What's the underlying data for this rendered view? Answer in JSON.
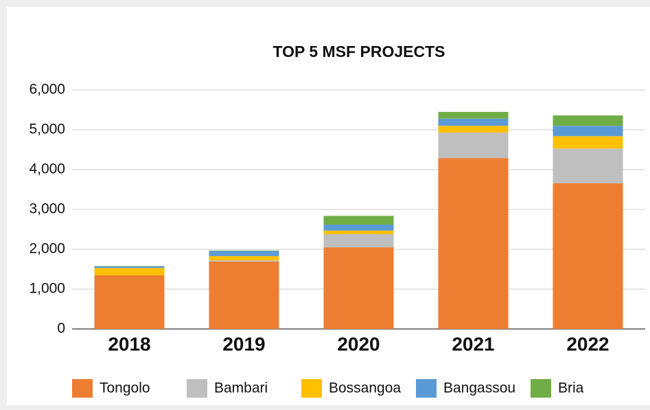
{
  "chart_data": {
    "type": "stacked_bar",
    "title": "TOP 5 MSF PROJECTS",
    "categories": [
      "2018",
      "2019",
      "2020",
      "2021",
      "2022"
    ],
    "series": [
      {
        "name": "Tongolo",
        "color": "#ed7d31",
        "values": [
          1350,
          1690,
          2050,
          4290,
          3660
        ]
      },
      {
        "name": "Bambari",
        "color": "#bfbfbf",
        "values": [
          0,
          30,
          330,
          640,
          870
        ]
      },
      {
        "name": "Bossangoa",
        "color": "#ffc000",
        "values": [
          180,
          110,
          90,
          170,
          310
        ]
      },
      {
        "name": "Bangassou",
        "color": "#5b9bd5",
        "values": [
          40,
          130,
          150,
          180,
          260
        ]
      },
      {
        "name": "Bria",
        "color": "#70ad47",
        "values": [
          10,
          10,
          220,
          170,
          260
        ]
      }
    ],
    "ylim": [
      0,
      6000
    ],
    "yticks": [
      0,
      {
        "value": 1000,
        "label": "1,000"
      },
      {
        "value": 2000,
        "label": "2,000"
      },
      {
        "value": 3000,
        "label": "3,000"
      },
      {
        "value": 4000,
        "label": "4,000"
      },
      {
        "value": 5000,
        "label": "5,000"
      },
      {
        "value": 6000,
        "label": "6,000"
      }
    ],
    "grid": true
  }
}
